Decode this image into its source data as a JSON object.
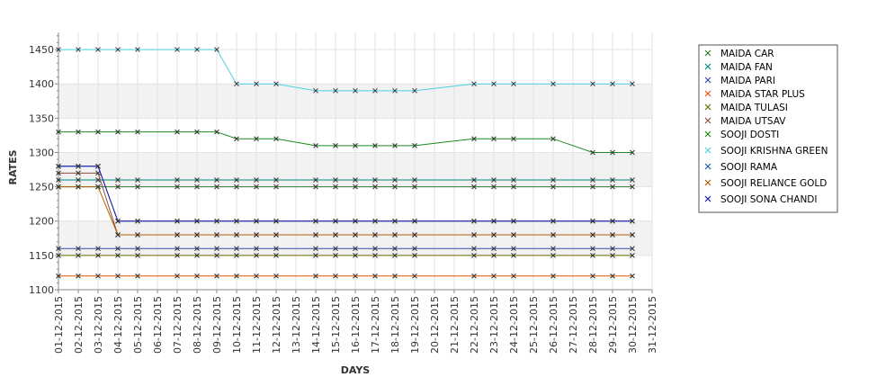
{
  "chart_data": {
    "type": "line",
    "xlabel": "DAYS",
    "ylabel": "RATES",
    "ylim": [
      1100,
      1475
    ],
    "yticks": [
      1100,
      1150,
      1200,
      1250,
      1300,
      1350,
      1400,
      1450
    ],
    "x": [
      "01-12-2015",
      "02-12-2015",
      "03-12-2015",
      "04-12-2015",
      "05-12-2015",
      "06-12-2015",
      "07-12-2015",
      "08-12-2015",
      "09-12-2015",
      "10-12-2015",
      "11-12-2015",
      "12-12-2015",
      "13-12-2015",
      "14-12-2015",
      "15-12-2015",
      "16-12-2015",
      "17-12-2015",
      "18-12-2015",
      "19-12-2015",
      "20-12-2015",
      "21-12-2015",
      "22-12-2015",
      "23-12-2015",
      "24-12-2015",
      "25-12-2015",
      "26-12-2015",
      "27-12-2015",
      "28-12-2015",
      "29-12-2015",
      "30-12-2015",
      "31-12-2015"
    ],
    "grid": true,
    "legend_position": "right",
    "series": [
      {
        "name": "MAIDA CAR",
        "color": "#2e7d32",
        "values": [
          1250,
          1250,
          1250,
          1250,
          1250,
          null,
          1250,
          1250,
          1250,
          1250,
          1250,
          1250,
          null,
          1250,
          1250,
          1250,
          1250,
          1250,
          1250,
          null,
          null,
          1250,
          1250,
          1250,
          null,
          1250,
          null,
          1250,
          1250,
          1250,
          null
        ]
      },
      {
        "name": "MAIDA FAN",
        "color": "#00897b",
        "values": [
          1260,
          1260,
          1260,
          1260,
          1260,
          null,
          1260,
          1260,
          1260,
          1260,
          1260,
          1260,
          null,
          1260,
          1260,
          1260,
          1260,
          1260,
          1260,
          null,
          null,
          1260,
          1260,
          1260,
          null,
          1260,
          null,
          1260,
          1260,
          1260,
          null
        ]
      },
      {
        "name": "MAIDA PARI",
        "color": "#3949ab",
        "values": [
          1160,
          1160,
          1160,
          1160,
          1160,
          null,
          1160,
          1160,
          1160,
          1160,
          1160,
          1160,
          null,
          1160,
          1160,
          1160,
          1160,
          1160,
          1160,
          null,
          null,
          1160,
          1160,
          1160,
          null,
          1160,
          null,
          1160,
          1160,
          1160,
          null
        ]
      },
      {
        "name": "MAIDA STAR PLUS",
        "color": "#e65100",
        "values": [
          1120,
          1120,
          1120,
          1120,
          1120,
          null,
          1120,
          1120,
          1120,
          1120,
          1120,
          1120,
          null,
          1120,
          1120,
          1120,
          1120,
          1120,
          1120,
          null,
          null,
          1120,
          1120,
          1120,
          null,
          1120,
          null,
          1120,
          1120,
          1120,
          null
        ]
      },
      {
        "name": "MAIDA TULASI",
        "color": "#6d6d00",
        "values": [
          1150,
          1150,
          1150,
          1150,
          1150,
          null,
          1150,
          1150,
          1150,
          1150,
          1150,
          1150,
          null,
          1150,
          1150,
          1150,
          1150,
          1150,
          1150,
          null,
          null,
          1150,
          1150,
          1150,
          null,
          1150,
          null,
          1150,
          1150,
          1150,
          null
        ]
      },
      {
        "name": "MAIDA UTSAV",
        "color": "#8d4e3c",
        "values": [
          1270,
          1270,
          1270,
          1180,
          1180,
          null,
          1180,
          1180,
          1180,
          1180,
          1180,
          1180,
          null,
          1180,
          1180,
          1180,
          1180,
          1180,
          1180,
          null,
          null,
          1180,
          1180,
          1180,
          null,
          1180,
          null,
          1180,
          1180,
          1180,
          null
        ]
      },
      {
        "name": "SOOJI DOSTI",
        "color": "#1b8a1b",
        "values": [
          1330,
          1330,
          1330,
          1330,
          1330,
          null,
          1330,
          1330,
          1330,
          1320,
          1320,
          1320,
          null,
          1310,
          1310,
          1310,
          1310,
          1310,
          1310,
          null,
          null,
          1320,
          1320,
          1320,
          null,
          1320,
          null,
          1300,
          1300,
          1300,
          null
        ]
      },
      {
        "name": "SOOJI KRISHNA GREEN",
        "color": "#4dd0e1",
        "values": [
          1450,
          1450,
          1450,
          1450,
          1450,
          null,
          1450,
          1450,
          1450,
          1400,
          1400,
          1400,
          null,
          1390,
          1390,
          1390,
          1390,
          1390,
          1390,
          null,
          null,
          1400,
          1400,
          1400,
          null,
          1400,
          null,
          1400,
          1400,
          1400,
          null
        ]
      },
      {
        "name": "SOOJI RAMA",
        "color": "#1e5aa8",
        "values": [
          1280,
          1280,
          1280,
          1200,
          1200,
          null,
          1200,
          1200,
          1200,
          1200,
          1200,
          1200,
          null,
          1200,
          1200,
          1200,
          1200,
          1200,
          1200,
          null,
          null,
          1200,
          1200,
          1200,
          null,
          1200,
          null,
          1200,
          1200,
          1200,
          null
        ]
      },
      {
        "name": "SOOJI RELIANCE GOLD",
        "color": "#b35c00",
        "values": [
          1250,
          1250,
          1250,
          1180,
          1180,
          null,
          1180,
          1180,
          1180,
          1180,
          1180,
          1180,
          null,
          1180,
          1180,
          1180,
          1180,
          1180,
          1180,
          null,
          null,
          1180,
          1180,
          1180,
          null,
          1180,
          null,
          1180,
          1180,
          1180,
          null
        ]
      },
      {
        "name": "SOOJI SONA CHANDI",
        "color": "#1a1aa6",
        "values": [
          1280,
          1280,
          1280,
          1200,
          1200,
          null,
          1200,
          1200,
          1200,
          1200,
          1200,
          1200,
          null,
          1200,
          1200,
          1200,
          1200,
          1200,
          1200,
          null,
          null,
          1200,
          1200,
          1200,
          null,
          1200,
          null,
          1200,
          1200,
          1200,
          null
        ]
      }
    ]
  }
}
